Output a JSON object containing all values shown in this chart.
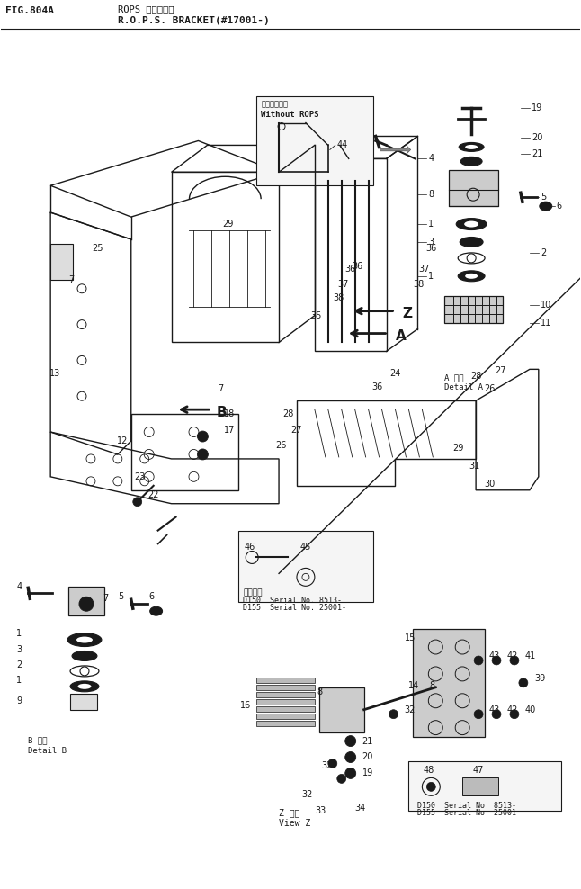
{
  "background_color": "#ffffff",
  "line_color": "#1a1a1a",
  "figsize": [
    6.46,
    9.88
  ],
  "dpi": 100,
  "header": {
    "fig_label": "FIG.804A",
    "title_jp": "ROPS ブラケット",
    "title_en": "R.O.P.S. BRACKET(#17001-)"
  }
}
